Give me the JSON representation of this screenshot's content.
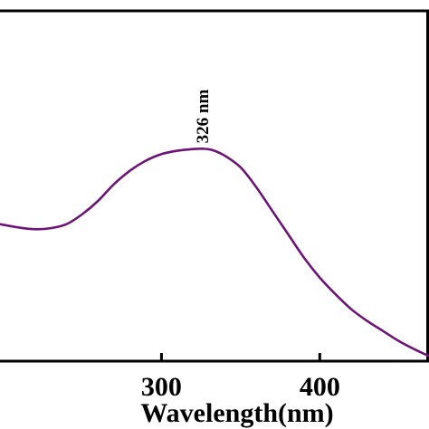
{
  "chart_data": {
    "type": "line",
    "title": "",
    "xlabel": "Wavelength(nm)",
    "ylabel": "",
    "xlim": [
      198,
      469
    ],
    "ylim": [
      0,
      1
    ],
    "grid": false,
    "legend": "none",
    "xticks": [
      {
        "value": 300,
        "label": "300"
      },
      {
        "value": 400,
        "label": "400"
      }
    ],
    "annotations": [
      {
        "x": 326,
        "text": "326 nm"
      }
    ],
    "series": [
      {
        "color": "#6d1576",
        "x": [
          198,
          210,
          220,
          230,
          240,
          250,
          260,
          270,
          280,
          290,
          300,
          310,
          320,
          326,
          332,
          340,
          350,
          360,
          370,
          380,
          390,
          400,
          410,
          420,
          430,
          440,
          450,
          460,
          469
        ],
        "y": [
          0.41,
          0.4,
          0.395,
          0.398,
          0.41,
          0.44,
          0.48,
          0.53,
          0.57,
          0.6,
          0.62,
          0.63,
          0.635,
          0.636,
          0.632,
          0.615,
          0.58,
          0.52,
          0.45,
          0.38,
          0.31,
          0.25,
          0.2,
          0.155,
          0.12,
          0.09,
          0.06,
          0.035,
          0.015
        ]
      }
    ]
  }
}
